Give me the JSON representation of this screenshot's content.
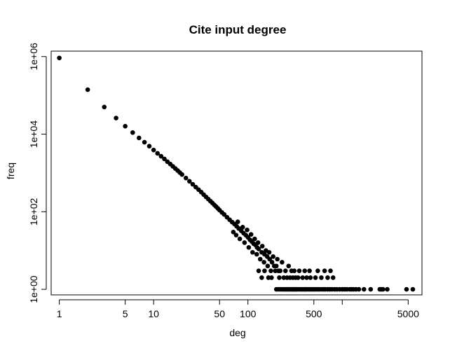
{
  "chart_data": {
    "type": "scatter",
    "title": "Cite input degree",
    "xlabel": "deg",
    "ylabel": "freq",
    "x_scale": "log",
    "y_scale": "log",
    "xlim": [
      0.82,
      7000
    ],
    "ylim": [
      0.72,
      1380000
    ],
    "x_ticks": [
      1,
      5,
      10,
      50,
      100,
      500,
      5000
    ],
    "x_tick_labels": [
      "1",
      "5",
      "10",
      "50",
      "100",
      "500",
      "5000"
    ],
    "x_minor_ticks": [
      1000
    ],
    "y_ticks": [
      1,
      100,
      10000,
      1000000
    ],
    "y_tick_labels": [
      "1e+00",
      "1e+02",
      "1e+04",
      "1e+06"
    ],
    "grid": false,
    "marker": "filled-circle",
    "color": "#000000",
    "series": [
      {
        "values_description_skip": "",
        "points": [
          [
            1,
            920000
          ],
          [
            2,
            140000
          ],
          [
            3,
            50000
          ],
          [
            4,
            26000
          ],
          [
            5,
            16000
          ],
          [
            6,
            11000
          ],
          [
            7,
            8000
          ],
          [
            8,
            6200
          ],
          [
            9,
            4900
          ],
          [
            10,
            3900
          ],
          [
            11,
            3200
          ],
          [
            12,
            2700
          ],
          [
            13,
            2300
          ],
          [
            14,
            1950
          ],
          [
            15,
            1700
          ],
          [
            16,
            1480
          ],
          [
            17,
            1300
          ],
          [
            18,
            1150
          ],
          [
            19,
            1020
          ],
          [
            20,
            910
          ],
          [
            22,
            740
          ],
          [
            24,
            610
          ],
          [
            26,
            510
          ],
          [
            28,
            430
          ],
          [
            30,
            370
          ],
          [
            32,
            320
          ],
          [
            34,
            275
          ],
          [
            36,
            240
          ],
          [
            38,
            212
          ],
          [
            40,
            188
          ],
          [
            42,
            168
          ],
          [
            44,
            150
          ],
          [
            46,
            135
          ],
          [
            48,
            122
          ],
          [
            50,
            110
          ],
          [
            53,
            96
          ],
          [
            56,
            85
          ],
          [
            60,
            72
          ],
          [
            64,
            62
          ],
          [
            68,
            54
          ],
          [
            72,
            48
          ],
          [
            76,
            42
          ],
          [
            80,
            37
          ],
          [
            85,
            32
          ],
          [
            90,
            28
          ],
          [
            95,
            25
          ],
          [
            100,
            22
          ],
          [
            105,
            19
          ],
          [
            110,
            17
          ],
          [
            115,
            15
          ],
          [
            120,
            14
          ],
          [
            125,
            12
          ],
          [
            130,
            11
          ],
          [
            140,
            9
          ],
          [
            150,
            8
          ],
          [
            160,
            7
          ],
          [
            170,
            6
          ],
          [
            180,
            5
          ],
          [
            190,
            4
          ],
          [
            200,
            4
          ],
          [
            210,
            3
          ],
          [
            220,
            3
          ],
          [
            240,
            2
          ],
          [
            260,
            2
          ],
          [
            280,
            2
          ],
          [
            300,
            2
          ],
          [
            320,
            2
          ],
          [
            340,
            2
          ],
          [
            380,
            2
          ],
          [
            420,
            2
          ],
          [
            460,
            2
          ],
          [
            520,
            2
          ],
          [
            600,
            2
          ],
          [
            700,
            2
          ],
          [
            800,
            2
          ],
          [
            70,
            30
          ],
          [
            75,
            25
          ],
          [
            78,
            55
          ],
          [
            82,
            20
          ],
          [
            88,
            40
          ],
          [
            92,
            16
          ],
          [
            98,
            34
          ],
          [
            102,
            12
          ],
          [
            108,
            26
          ],
          [
            112,
            9
          ],
          [
            118,
            20
          ],
          [
            124,
            8
          ],
          [
            128,
            16
          ],
          [
            135,
            6
          ],
          [
            142,
            13
          ],
          [
            148,
            5
          ],
          [
            155,
            10
          ],
          [
            162,
            4
          ],
          [
            168,
            9
          ],
          [
            175,
            3
          ],
          [
            185,
            7
          ],
          [
            195,
            3
          ],
          [
            205,
            6
          ],
          [
            215,
            2
          ],
          [
            230,
            5
          ],
          [
            250,
            3
          ],
          [
            270,
            4
          ],
          [
            290,
            3
          ],
          [
            310,
            3
          ],
          [
            350,
            3
          ],
          [
            400,
            3
          ],
          [
            450,
            3
          ],
          [
            550,
            3
          ],
          [
            650,
            3
          ],
          [
            750,
            3
          ],
          [
            130,
            3
          ],
          [
            140,
            2
          ],
          [
            150,
            3
          ],
          [
            165,
            2
          ],
          [
            178,
            2
          ],
          [
            200,
            1
          ],
          [
            210,
            1
          ],
          [
            220,
            1
          ],
          [
            230,
            1
          ],
          [
            240,
            1
          ],
          [
            250,
            1
          ],
          [
            260,
            1
          ],
          [
            270,
            1
          ],
          [
            280,
            1
          ],
          [
            290,
            1
          ],
          [
            300,
            1
          ],
          [
            310,
            1
          ],
          [
            320,
            1
          ],
          [
            330,
            1
          ],
          [
            345,
            1
          ],
          [
            360,
            1
          ],
          [
            375,
            1
          ],
          [
            390,
            1
          ],
          [
            405,
            1
          ],
          [
            420,
            1
          ],
          [
            440,
            1
          ],
          [
            460,
            1
          ],
          [
            480,
            1
          ],
          [
            500,
            1
          ],
          [
            520,
            1
          ],
          [
            545,
            1
          ],
          [
            570,
            1
          ],
          [
            600,
            1
          ],
          [
            630,
            1
          ],
          [
            660,
            1
          ],
          [
            700,
            1
          ],
          [
            740,
            1
          ],
          [
            780,
            1
          ],
          [
            830,
            1
          ],
          [
            880,
            1
          ],
          [
            940,
            1
          ],
          [
            1000,
            1
          ],
          [
            1060,
            1
          ],
          [
            1120,
            1
          ],
          [
            1200,
            1
          ],
          [
            1260,
            1
          ],
          [
            1320,
            1
          ],
          [
            1400,
            1
          ],
          [
            1500,
            1
          ],
          [
            1700,
            1
          ],
          [
            2000,
            1
          ],
          [
            2500,
            1
          ],
          [
            2600,
            1
          ],
          [
            2700,
            1
          ],
          [
            3000,
            1
          ],
          [
            4800,
            1
          ],
          [
            5600,
            1
          ]
        ]
      }
    ]
  }
}
